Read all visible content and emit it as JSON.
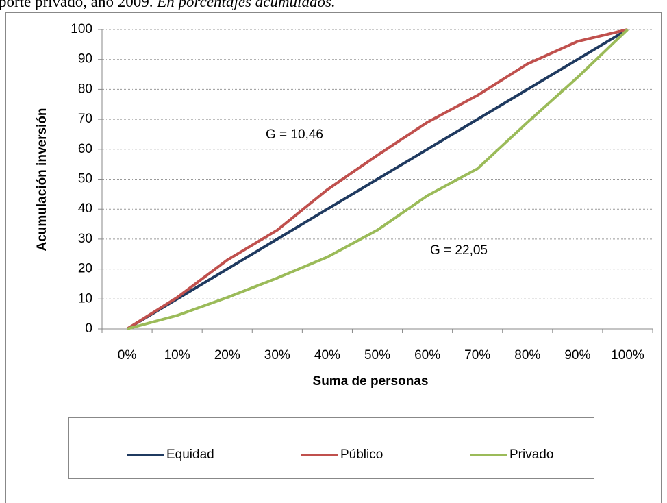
{
  "chart_data": {
    "type": "line",
    "title": "porte privado, año 2009.",
    "subtitle": "En porcentajes acumulados.",
    "x_label": "Suma de personas",
    "y_label": "Acumulación inversión",
    "categories": [
      "0%",
      "10%",
      "20%",
      "30%",
      "40%",
      "50%",
      "60%",
      "70%",
      "80%",
      "90%",
      "100%"
    ],
    "series": [
      {
        "name": "Equidad",
        "color": "#1f3a60",
        "values": [
          0,
          10,
          20,
          30,
          40,
          50,
          60,
          70,
          80,
          90,
          100
        ]
      },
      {
        "name": "Público",
        "color": "#c0504d",
        "values": [
          0,
          10.5,
          23,
          33,
          46.5,
          58,
          69,
          78,
          88.5,
          96,
          100
        ]
      },
      {
        "name": "Privado",
        "color": "#9bbb59",
        "values": [
          0,
          4.5,
          10.5,
          17,
          24,
          33,
          44.5,
          53.5,
          69,
          84,
          100
        ]
      }
    ],
    "ylim": [
      0,
      100
    ],
    "yticks": [
      0,
      10,
      20,
      30,
      40,
      50,
      60,
      70,
      80,
      90,
      100
    ],
    "grid": true,
    "legend": "bottom",
    "annotations": [
      "G = 10,46",
      "G = 22,05"
    ]
  }
}
